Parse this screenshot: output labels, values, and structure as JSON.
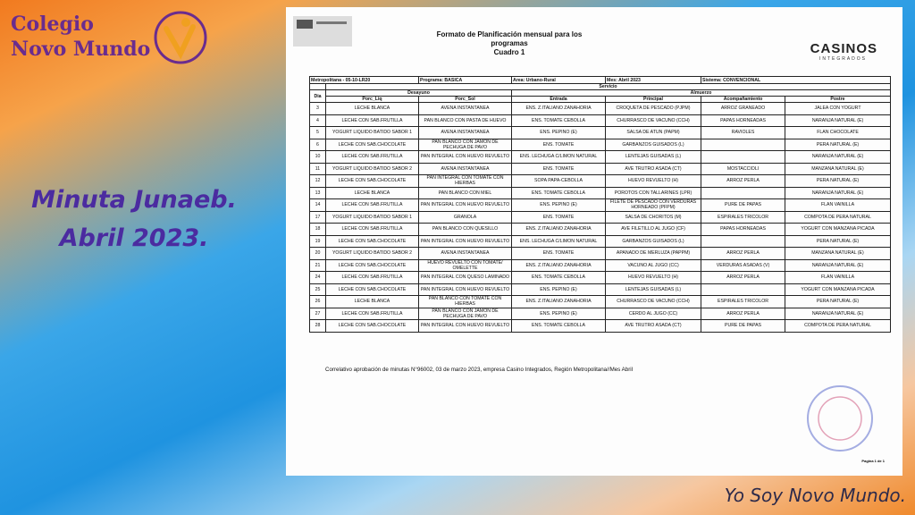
{
  "slide": {
    "logo": {
      "line1": "Colegio",
      "line2": "Novo Mundo"
    },
    "heading": {
      "line1": "Minuta Junaeb.",
      "line2": "Abril 2023."
    },
    "footer": "Yo Soy Novo Mundo."
  },
  "document": {
    "title": {
      "line1": "Formato de Planificación mensual para los",
      "line2": "programas",
      "line3": "Cuadro 1"
    },
    "brand": {
      "name": "CASINOS",
      "sub": "INTEGRADOS"
    },
    "info": [
      "Metropolitana - 05-10-LR20",
      "Programa: BASICA",
      "Area: Urbano-Rural",
      "Mes: Abril 2023",
      "Sistema: CONVENCIONAL"
    ],
    "service": "Servicio",
    "groups": {
      "breakfast": "Desayuno",
      "lunch": "Almuerzo"
    },
    "columns": [
      "Dia",
      "Porc_Liq",
      "Porc_Sol",
      "Entrada",
      "Principal",
      "Acompañamiento",
      "Postre"
    ],
    "rows": [
      [
        "3",
        "LECHE BLANCA",
        "AVENA INSTANTANEA",
        "ENS. Z.ITALIANO ZANAHORIA",
        "CROQUETA DE PESCADO (PJPM)",
        "ARROZ GRANEADO",
        "JALEA CON YOGURT"
      ],
      [
        "4",
        "LECHE CON SAB.FRUTILLA",
        "PAN BLANCO CON PASTA DE HUEVO",
        "ENS. TOMATE CEBOLLA",
        "CHURRASCO DE VACUNO (CCH)",
        "PAPAS HORNEADAS",
        "NARANJA NATURAL (E)"
      ],
      [
        "5",
        "YOGURT LIQUIDO BATIDO SABOR 1",
        "AVENA INSTANTANEA",
        "ENS. PEPINO (E)",
        "SALSA DE ATUN (PAPM)",
        "RAVIOLES",
        "FLAN CHOCOLATE"
      ],
      [
        "6",
        "LECHE CON SAB.CHOCOLATE",
        "PAN BLANCO CON JAMON DE PECHUGA DE PAVO",
        "ENS. TOMATE",
        "GARBANZOS GUISADOS (L)",
        null,
        "PERA NATURAL (E)"
      ],
      [
        "10",
        "LECHE CON SAB.FRUTILLA",
        "PAN INTEGRAL CON HUEVO REVUELTO",
        "ENS. LECHUGA C/LIMON NATURAL",
        "LENTEJAS GUISADAS (L)",
        null,
        "NARANJA NATURAL (E)"
      ],
      [
        "11",
        "YOGURT LIQUIDO BATIDO SABOR 2",
        "AVENA INSTANTANEA",
        "ENS. TOMATE",
        "AVE TRUTRO ASADA (CT)",
        "MOSTACCIOLI",
        "MANZANA NATURAL (E)"
      ],
      [
        "12",
        "LECHE CON SAB.CHOCOLATE",
        "PAN INTEGRAL CON TOMATE CON HIERBAS",
        "SOPA PAPA-CEBOLLA",
        "HUEVO REVUELTO (H)",
        "ARROZ PERLA",
        "PERA NATURAL (E)"
      ],
      [
        "13",
        "LECHE BLANCA",
        "PAN BLANCO CON MIEL",
        "ENS. TOMATE CEBOLLA",
        "POROTOS CON TALLARINES (LPR)",
        null,
        "NARANJA NATURAL (E)"
      ],
      [
        "14",
        "LECHE CON SAB.FRUTILLA",
        "PAN INTEGRAL CON HUEVO REVUELTO",
        "ENS. PEPINO (E)",
        "FILETE DE PESCADO CON VERDURAS HORNEADO (PFPM)",
        "PURE DE PAPAS",
        "FLAN VAINILLA"
      ],
      [
        "17",
        "YOGURT LIQUIDO BATIDO SABOR 1",
        "GRANOLA",
        "ENS. TOMATE",
        "SALSA DE CHORITOS (M)",
        "ESPIRALES TRICOLOR",
        "COMPOTA DE PERA NATURAL"
      ],
      [
        "18",
        "LECHE CON SAB.FRUTILLA",
        "PAN BLANCO CON QUESILLO",
        "ENS. Z.ITALIANO ZANAHORIA",
        "AVE FILETILLO AL JUGO (CF)",
        "PAPAS HORNEADAS",
        "YOGURT CON MANZANA PICADA"
      ],
      [
        "19",
        "LECHE CON SAB.CHOCOLATE",
        "PAN INTEGRAL CON HUEVO REVUELTO",
        "ENS. LECHUGA C/LIMON NATURAL",
        "GARBANZOS GUISADOS (L)",
        null,
        "PERA NATURAL (E)"
      ],
      [
        "20",
        "YOGURT LIQUIDO BATIDO SABOR 2",
        "AVENA INSTANTANEA",
        "ENS. TOMATE",
        "APANADO DE MERLUZA (PAPPM)",
        "ARROZ PERLA",
        "MANZANA NATURAL (E)"
      ],
      [
        "21",
        "LECHE CON SAB.CHOCOLATE",
        "HUEVO REVUELTO CON TOMATE/ OMELETTE",
        "ENS. Z.ITALIANO ZANAHORIA",
        "VACUNO AL JUGO (CC)",
        "VERDURAS ASADAS (V)",
        "NARANJA NATURAL (E)"
      ],
      [
        "24",
        "LECHE CON SAB.FRUTILLA",
        "PAN INTEGRAL CON QUESO LAMINADO",
        "ENS. TOMATE CEBOLLA",
        "HUEVO REVUELTO (H)",
        "ARROZ PERLA",
        "FLAN VAINILLA"
      ],
      [
        "25",
        "LECHE CON SAB.CHOCOLATE",
        "PAN INTEGRAL CON HUEVO REVUELTO",
        "ENS. PEPINO (E)",
        "LENTEJAS GUISADAS (L)",
        null,
        "YOGURT CON MANZANA PICADA"
      ],
      [
        "26",
        "LECHE BLANCA",
        "PAN BLANCO CON TOMATE CON HIERBAS",
        "ENS. Z.ITALIANO ZANAHORIA",
        "CHURRASCO DE VACUNO (CCH)",
        "ESPIRALES TRICOLOR",
        "PERA NATURAL (E)"
      ],
      [
        "27",
        "LECHE CON SAB.FRUTILLA",
        "PAN BLANCO CON JAMON DE PECHUGA DE PAVO",
        "ENS. PEPINO (E)",
        "CERDO AL JUGO (CC)",
        "ARROZ PERLA",
        "NARANJA NATURAL (E)"
      ],
      [
        "28",
        "LECHE CON SAB.CHOCOLATE",
        "PAN INTEGRAL CON HUEVO REVUELTO",
        "ENS. TOMATE CEBOLLA",
        "AVE TRUTRO ASADA (CT)",
        "PURE DE PAPAS",
        "COMPOTA DE PERA NATURAL"
      ]
    ],
    "note": "Correlativo aprobación de minutas N°96002, 03 de marzo 2023, empresa Casino Integrados, Región Metropolitana//Mes Abril",
    "page": "Pagina 1 de 1"
  }
}
